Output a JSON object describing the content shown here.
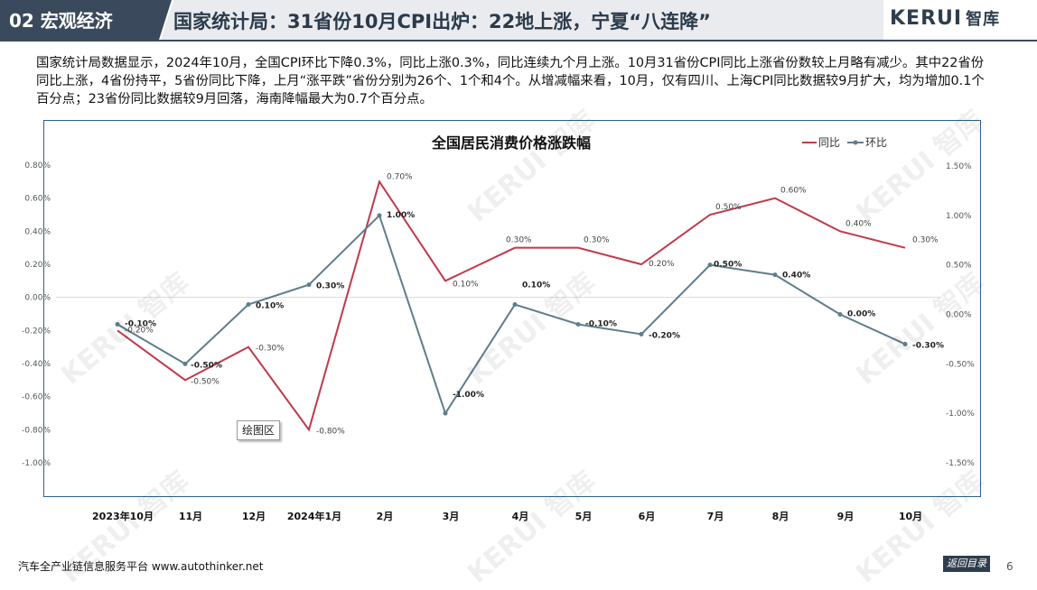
{
  "header": {
    "section": "02 宏观经济",
    "title": "国家统计局：31省份10月CPI出炉：22地上涨，宁夏“八连降”",
    "logo_latin": "KERUI",
    "logo_cn": "智库"
  },
  "intro": "国家统计局数据显示，2024年10月，全国CPI环比下降0.3%，同比上涨0.3%，同比连续九个月上涨。10月31省份CPI同比上涨省份数较上月略有减少。其中22省份同比上涨，4省份持平，5省份同比下降，上月“涨平跌”省份分别为26个、1个和4个。从增减幅来看，10月，仅有四川、上海CPI同比数据较9月扩大，均为增加0.1个百分点；23省份同比数据较9月回落，海南降幅最大为0.7个百分点。",
  "chart_data": {
    "type": "line",
    "title": "全国居民消费价格涨跌幅",
    "categories": [
      "2023年10月",
      "11月",
      "12月",
      "2024年1月",
      "2月",
      "3月",
      "4月",
      "5月",
      "6月",
      "7月",
      "8月",
      "9月",
      "10月"
    ],
    "series": [
      {
        "name": "同比",
        "axis": "left",
        "color": "#c0394b",
        "values": [
          -0.2,
          -0.5,
          -0.3,
          -0.8,
          0.7,
          0.1,
          0.3,
          0.3,
          0.2,
          0.5,
          0.6,
          0.4,
          0.3
        ],
        "labels": [
          "-0.20%",
          "-0.50%",
          "-0.30%",
          "-0.80%",
          "0.70%",
          "0.10%",
          "0.30%",
          "0.30%",
          "0.20%",
          "0.50%",
          "0.60%",
          "0.40%",
          "0.30%"
        ]
      },
      {
        "name": "环比",
        "axis": "right",
        "color": "#5f7d8c",
        "values": [
          -0.1,
          -0.5,
          0.1,
          0.3,
          1.0,
          -1.0,
          0.1,
          -0.1,
          -0.2,
          0.5,
          0.4,
          0.0,
          -0.3
        ],
        "labels": [
          "-0.10%",
          "-0.50%",
          "0.10%",
          "0.30%",
          "1.00%",
          "-1.00%",
          "0.10%",
          "-0.10%",
          "-0.20%",
          "0.50%",
          "0.40%",
          "0.00%",
          "-0.30%"
        ]
      }
    ],
    "left_axis": {
      "ylim": [
        -1.0,
        0.8
      ],
      "ticks": [
        "0.80%",
        "0.60%",
        "0.40%",
        "0.20%",
        "0.00%",
        "-0.20%",
        "-0.40%",
        "-0.60%",
        "-0.80%",
        "-1.00%"
      ]
    },
    "right_axis": {
      "ylim": [
        -1.5,
        1.5
      ],
      "ticks": [
        "1.50%",
        "1.00%",
        "0.50%",
        "0.00%",
        "-0.50%",
        "-1.00%",
        "-1.50%"
      ]
    },
    "legend_position": "top-right",
    "zero_gridline": true
  },
  "plot_tag": "绘图区",
  "footer": {
    "platform": "汽车全产业链信息服务平台 www.autothinker.net",
    "back_button": "返回目录",
    "page_number": "6"
  },
  "colors": {
    "header_dark": "#3a4a5c",
    "accent_red": "#c0392b",
    "frame_blue": "#2f5f8a"
  }
}
